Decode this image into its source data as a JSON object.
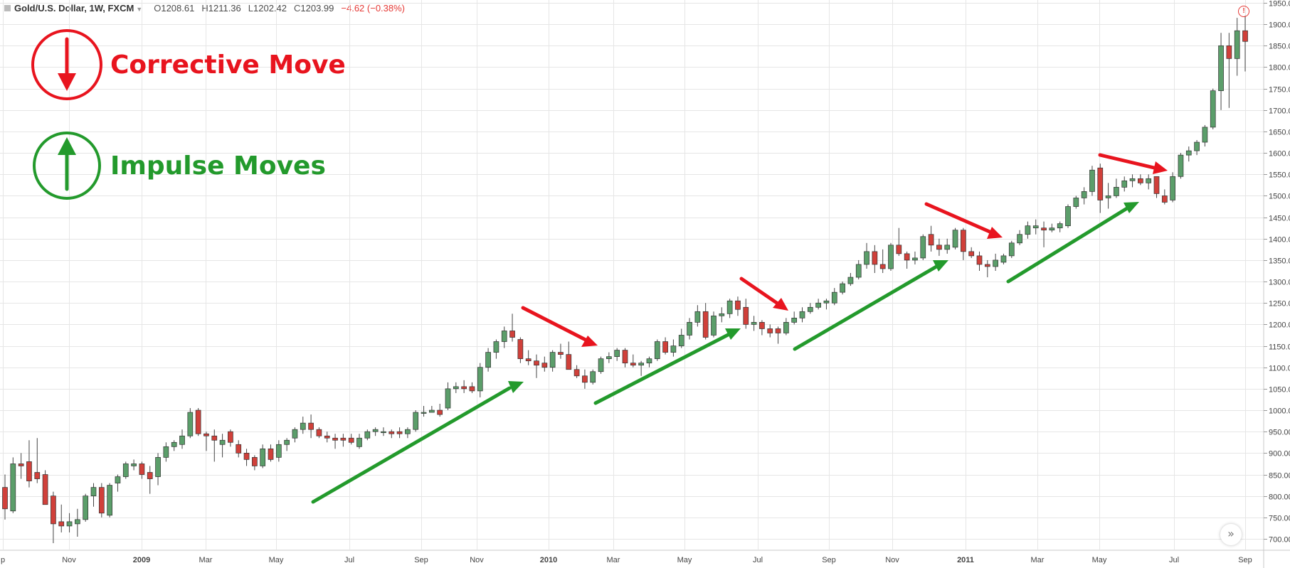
{
  "legend": {
    "symbol": "Gold/U.S. Dollar, 1W, FXCM",
    "open_label": "O",
    "open": "1208.61",
    "high_label": "H",
    "high": "1211.36",
    "low_label": "L",
    "low": "1202.42",
    "close_label": "C",
    "close": "1203.99",
    "change": "−4.62 (−0.38%)"
  },
  "annotations": {
    "corrective": {
      "text": "Corrective Move",
      "color": "#e8141e",
      "icon": "down-arrow-circle-icon"
    },
    "impulse": {
      "text": "Impulse Moves",
      "color": "#239a2c",
      "icon": "up-arrow-circle-icon"
    }
  },
  "colors": {
    "up": "#5b9e6a",
    "down": "#d0403a",
    "grid": "#e6e6e6",
    "wick": "#444444"
  },
  "chart_data": {
    "type": "candlestick",
    "title": "Gold/U.S. Dollar, 1W, FXCM",
    "ylim": [
      680,
      1960
    ],
    "y_ticks": [
      700,
      750,
      800,
      850,
      900,
      950,
      1000,
      1050,
      1100,
      1150,
      1200,
      1250,
      1300,
      1350,
      1400,
      1450,
      1500,
      1550,
      1600,
      1650,
      1700,
      1750,
      1800,
      1850,
      1900,
      1950
    ],
    "x_labels": [
      "p",
      "Nov",
      "2009",
      "Mar",
      "May",
      "Jul",
      "Sep",
      "Nov",
      "2010",
      "Mar",
      "May",
      "Jul",
      "Sep",
      "Nov",
      "2011",
      "Mar",
      "May",
      "Jul",
      "Sep"
    ],
    "x_label_bold": [
      "2009",
      "2010",
      "2011"
    ],
    "series": [
      {
        "o": 820,
        "h": 850,
        "l": 745,
        "c": 770
      },
      {
        "o": 765,
        "h": 890,
        "l": 760,
        "c": 875
      },
      {
        "o": 875,
        "h": 900,
        "l": 840,
        "c": 870
      },
      {
        "o": 880,
        "h": 930,
        "l": 820,
        "c": 835
      },
      {
        "o": 855,
        "h": 935,
        "l": 830,
        "c": 840
      },
      {
        "o": 850,
        "h": 860,
        "l": 780,
        "c": 780
      },
      {
        "o": 800,
        "h": 810,
        "l": 690,
        "c": 735
      },
      {
        "o": 740,
        "h": 780,
        "l": 715,
        "c": 730
      },
      {
        "o": 730,
        "h": 760,
        "l": 715,
        "c": 740
      },
      {
        "o": 735,
        "h": 770,
        "l": 705,
        "c": 745
      },
      {
        "o": 745,
        "h": 805,
        "l": 740,
        "c": 800
      },
      {
        "o": 800,
        "h": 830,
        "l": 775,
        "c": 820
      },
      {
        "o": 820,
        "h": 830,
        "l": 750,
        "c": 760
      },
      {
        "o": 755,
        "h": 830,
        "l": 750,
        "c": 825
      },
      {
        "o": 830,
        "h": 850,
        "l": 810,
        "c": 845
      },
      {
        "o": 845,
        "h": 880,
        "l": 840,
        "c": 875
      },
      {
        "o": 870,
        "h": 885,
        "l": 860,
        "c": 875
      },
      {
        "o": 875,
        "h": 880,
        "l": 840,
        "c": 850
      },
      {
        "o": 855,
        "h": 870,
        "l": 805,
        "c": 840
      },
      {
        "o": 845,
        "h": 900,
        "l": 825,
        "c": 890
      },
      {
        "o": 890,
        "h": 925,
        "l": 880,
        "c": 915
      },
      {
        "o": 915,
        "h": 930,
        "l": 905,
        "c": 925
      },
      {
        "o": 920,
        "h": 955,
        "l": 910,
        "c": 940
      },
      {
        "o": 940,
        "h": 1005,
        "l": 935,
        "c": 995
      },
      {
        "o": 1000,
        "h": 1005,
        "l": 940,
        "c": 945
      },
      {
        "o": 945,
        "h": 950,
        "l": 905,
        "c": 940
      },
      {
        "o": 940,
        "h": 955,
        "l": 880,
        "c": 930
      },
      {
        "o": 920,
        "h": 945,
        "l": 890,
        "c": 930
      },
      {
        "o": 950,
        "h": 955,
        "l": 915,
        "c": 925
      },
      {
        "o": 920,
        "h": 930,
        "l": 890,
        "c": 900
      },
      {
        "o": 900,
        "h": 910,
        "l": 870,
        "c": 885
      },
      {
        "o": 890,
        "h": 895,
        "l": 860,
        "c": 870
      },
      {
        "o": 870,
        "h": 920,
        "l": 865,
        "c": 910
      },
      {
        "o": 910,
        "h": 920,
        "l": 880,
        "c": 885
      },
      {
        "o": 890,
        "h": 930,
        "l": 880,
        "c": 920
      },
      {
        "o": 920,
        "h": 935,
        "l": 905,
        "c": 930
      },
      {
        "o": 935,
        "h": 960,
        "l": 925,
        "c": 955
      },
      {
        "o": 955,
        "h": 985,
        "l": 945,
        "c": 970
      },
      {
        "o": 970,
        "h": 990,
        "l": 935,
        "c": 955
      },
      {
        "o": 955,
        "h": 960,
        "l": 935,
        "c": 940
      },
      {
        "o": 940,
        "h": 950,
        "l": 925,
        "c": 935
      },
      {
        "o": 935,
        "h": 945,
        "l": 910,
        "c": 930
      },
      {
        "o": 935,
        "h": 945,
        "l": 915,
        "c": 930
      },
      {
        "o": 935,
        "h": 945,
        "l": 920,
        "c": 925
      },
      {
        "o": 915,
        "h": 945,
        "l": 910,
        "c": 935
      },
      {
        "o": 935,
        "h": 955,
        "l": 930,
        "c": 950
      },
      {
        "o": 950,
        "h": 960,
        "l": 940,
        "c": 955
      },
      {
        "o": 950,
        "h": 960,
        "l": 940,
        "c": 950
      },
      {
        "o": 950,
        "h": 955,
        "l": 935,
        "c": 945
      },
      {
        "o": 950,
        "h": 960,
        "l": 935,
        "c": 945
      },
      {
        "o": 945,
        "h": 960,
        "l": 935,
        "c": 955
      },
      {
        "o": 955,
        "h": 1000,
        "l": 950,
        "c": 995
      },
      {
        "o": 995,
        "h": 1010,
        "l": 985,
        "c": 995
      },
      {
        "o": 995,
        "h": 1010,
        "l": 995,
        "c": 1000
      },
      {
        "o": 1000,
        "h": 1015,
        "l": 985,
        "c": 990
      },
      {
        "o": 1005,
        "h": 1065,
        "l": 1000,
        "c": 1050
      },
      {
        "o": 1050,
        "h": 1065,
        "l": 1040,
        "c": 1055
      },
      {
        "o": 1055,
        "h": 1070,
        "l": 1040,
        "c": 1050
      },
      {
        "o": 1055,
        "h": 1065,
        "l": 1040,
        "c": 1045
      },
      {
        "o": 1045,
        "h": 1110,
        "l": 1030,
        "c": 1100
      },
      {
        "o": 1100,
        "h": 1145,
        "l": 1090,
        "c": 1135
      },
      {
        "o": 1135,
        "h": 1165,
        "l": 1120,
        "c": 1160
      },
      {
        "o": 1160,
        "h": 1195,
        "l": 1145,
        "c": 1185
      },
      {
        "o": 1185,
        "h": 1225,
        "l": 1160,
        "c": 1170
      },
      {
        "o": 1165,
        "h": 1170,
        "l": 1110,
        "c": 1120
      },
      {
        "o": 1120,
        "h": 1140,
        "l": 1105,
        "c": 1115
      },
      {
        "o": 1115,
        "h": 1130,
        "l": 1075,
        "c": 1105
      },
      {
        "o": 1110,
        "h": 1125,
        "l": 1090,
        "c": 1100
      },
      {
        "o": 1100,
        "h": 1140,
        "l": 1090,
        "c": 1135
      },
      {
        "o": 1135,
        "h": 1155,
        "l": 1120,
        "c": 1130
      },
      {
        "o": 1130,
        "h": 1160,
        "l": 1100,
        "c": 1095
      },
      {
        "o": 1095,
        "h": 1105,
        "l": 1075,
        "c": 1080
      },
      {
        "o": 1080,
        "h": 1095,
        "l": 1050,
        "c": 1065
      },
      {
        "o": 1065,
        "h": 1095,
        "l": 1060,
        "c": 1090
      },
      {
        "o": 1090,
        "h": 1125,
        "l": 1085,
        "c": 1120
      },
      {
        "o": 1120,
        "h": 1135,
        "l": 1110,
        "c": 1125
      },
      {
        "o": 1125,
        "h": 1145,
        "l": 1115,
        "c": 1140
      },
      {
        "o": 1140,
        "h": 1145,
        "l": 1100,
        "c": 1110
      },
      {
        "o": 1110,
        "h": 1130,
        "l": 1100,
        "c": 1105
      },
      {
        "o": 1105,
        "h": 1115,
        "l": 1080,
        "c": 1110
      },
      {
        "o": 1110,
        "h": 1125,
        "l": 1100,
        "c": 1120
      },
      {
        "o": 1120,
        "h": 1165,
        "l": 1115,
        "c": 1160
      },
      {
        "o": 1160,
        "h": 1170,
        "l": 1130,
        "c": 1135
      },
      {
        "o": 1135,
        "h": 1165,
        "l": 1125,
        "c": 1150
      },
      {
        "o": 1150,
        "h": 1190,
        "l": 1145,
        "c": 1175
      },
      {
        "o": 1175,
        "h": 1215,
        "l": 1165,
        "c": 1205
      },
      {
        "o": 1205,
        "h": 1245,
        "l": 1195,
        "c": 1230
      },
      {
        "o": 1230,
        "h": 1250,
        "l": 1165,
        "c": 1170
      },
      {
        "o": 1175,
        "h": 1230,
        "l": 1170,
        "c": 1220
      },
      {
        "o": 1220,
        "h": 1240,
        "l": 1205,
        "c": 1225
      },
      {
        "o": 1225,
        "h": 1260,
        "l": 1215,
        "c": 1255
      },
      {
        "o": 1255,
        "h": 1265,
        "l": 1220,
        "c": 1235
      },
      {
        "o": 1240,
        "h": 1260,
        "l": 1190,
        "c": 1200
      },
      {
        "o": 1200,
        "h": 1220,
        "l": 1185,
        "c": 1205
      },
      {
        "o": 1205,
        "h": 1210,
        "l": 1175,
        "c": 1190
      },
      {
        "o": 1190,
        "h": 1200,
        "l": 1170,
        "c": 1180
      },
      {
        "o": 1190,
        "h": 1195,
        "l": 1155,
        "c": 1180
      },
      {
        "o": 1180,
        "h": 1215,
        "l": 1175,
        "c": 1205
      },
      {
        "o": 1205,
        "h": 1230,
        "l": 1200,
        "c": 1215
      },
      {
        "o": 1215,
        "h": 1240,
        "l": 1205,
        "c": 1230
      },
      {
        "o": 1230,
        "h": 1250,
        "l": 1225,
        "c": 1240
      },
      {
        "o": 1240,
        "h": 1260,
        "l": 1235,
        "c": 1250
      },
      {
        "o": 1250,
        "h": 1260,
        "l": 1235,
        "c": 1255
      },
      {
        "o": 1250,
        "h": 1285,
        "l": 1245,
        "c": 1275
      },
      {
        "o": 1275,
        "h": 1300,
        "l": 1270,
        "c": 1295
      },
      {
        "o": 1295,
        "h": 1320,
        "l": 1290,
        "c": 1310
      },
      {
        "o": 1310,
        "h": 1350,
        "l": 1305,
        "c": 1340
      },
      {
        "o": 1340,
        "h": 1390,
        "l": 1330,
        "c": 1370
      },
      {
        "o": 1370,
        "h": 1385,
        "l": 1320,
        "c": 1340
      },
      {
        "o": 1340,
        "h": 1375,
        "l": 1320,
        "c": 1330
      },
      {
        "o": 1330,
        "h": 1390,
        "l": 1325,
        "c": 1385
      },
      {
        "o": 1385,
        "h": 1425,
        "l": 1360,
        "c": 1365
      },
      {
        "o": 1365,
        "h": 1370,
        "l": 1330,
        "c": 1350
      },
      {
        "o": 1350,
        "h": 1370,
        "l": 1340,
        "c": 1355
      },
      {
        "o": 1355,
        "h": 1410,
        "l": 1350,
        "c": 1405
      },
      {
        "o": 1410,
        "h": 1430,
        "l": 1370,
        "c": 1385
      },
      {
        "o": 1385,
        "h": 1400,
        "l": 1360,
        "c": 1375
      },
      {
        "o": 1375,
        "h": 1400,
        "l": 1365,
        "c": 1385
      },
      {
        "o": 1380,
        "h": 1425,
        "l": 1375,
        "c": 1420
      },
      {
        "o": 1420,
        "h": 1425,
        "l": 1350,
        "c": 1370
      },
      {
        "o": 1370,
        "h": 1380,
        "l": 1355,
        "c": 1360
      },
      {
        "o": 1360,
        "h": 1370,
        "l": 1325,
        "c": 1340
      },
      {
        "o": 1340,
        "h": 1350,
        "l": 1310,
        "c": 1335
      },
      {
        "o": 1335,
        "h": 1365,
        "l": 1325,
        "c": 1350
      },
      {
        "o": 1345,
        "h": 1365,
        "l": 1340,
        "c": 1360
      },
      {
        "o": 1360,
        "h": 1395,
        "l": 1355,
        "c": 1390
      },
      {
        "o": 1390,
        "h": 1420,
        "l": 1385,
        "c": 1410
      },
      {
        "o": 1410,
        "h": 1440,
        "l": 1400,
        "c": 1430
      },
      {
        "o": 1425,
        "h": 1445,
        "l": 1410,
        "c": 1430
      },
      {
        "o": 1425,
        "h": 1440,
        "l": 1380,
        "c": 1420
      },
      {
        "o": 1420,
        "h": 1435,
        "l": 1415,
        "c": 1425
      },
      {
        "o": 1425,
        "h": 1440,
        "l": 1415,
        "c": 1435
      },
      {
        "o": 1430,
        "h": 1480,
        "l": 1425,
        "c": 1475
      },
      {
        "o": 1475,
        "h": 1500,
        "l": 1470,
        "c": 1495
      },
      {
        "o": 1495,
        "h": 1520,
        "l": 1480,
        "c": 1510
      },
      {
        "o": 1510,
        "h": 1570,
        "l": 1500,
        "c": 1560
      },
      {
        "o": 1565,
        "h": 1575,
        "l": 1460,
        "c": 1490
      },
      {
        "o": 1495,
        "h": 1530,
        "l": 1470,
        "c": 1500
      },
      {
        "o": 1500,
        "h": 1540,
        "l": 1495,
        "c": 1520
      },
      {
        "o": 1520,
        "h": 1545,
        "l": 1510,
        "c": 1535
      },
      {
        "o": 1535,
        "h": 1550,
        "l": 1520,
        "c": 1540
      },
      {
        "o": 1540,
        "h": 1550,
        "l": 1525,
        "c": 1530
      },
      {
        "o": 1530,
        "h": 1550,
        "l": 1515,
        "c": 1540
      },
      {
        "o": 1545,
        "h": 1545,
        "l": 1495,
        "c": 1505
      },
      {
        "o": 1500,
        "h": 1515,
        "l": 1480,
        "c": 1485
      },
      {
        "o": 1490,
        "h": 1555,
        "l": 1485,
        "c": 1545
      },
      {
        "o": 1545,
        "h": 1600,
        "l": 1540,
        "c": 1595
      },
      {
        "o": 1595,
        "h": 1615,
        "l": 1580,
        "c": 1605
      },
      {
        "o": 1605,
        "h": 1630,
        "l": 1595,
        "c": 1625
      },
      {
        "o": 1625,
        "h": 1665,
        "l": 1615,
        "c": 1660
      },
      {
        "o": 1660,
        "h": 1750,
        "l": 1655,
        "c": 1745
      },
      {
        "o": 1745,
        "h": 1880,
        "l": 1700,
        "c": 1850
      },
      {
        "o": 1850,
        "h": 1880,
        "l": 1705,
        "c": 1820
      },
      {
        "o": 1820,
        "h": 1915,
        "l": 1780,
        "c": 1885
      },
      {
        "o": 1885,
        "h": 1920,
        "l": 1790,
        "c": 1860
      }
    ]
  }
}
